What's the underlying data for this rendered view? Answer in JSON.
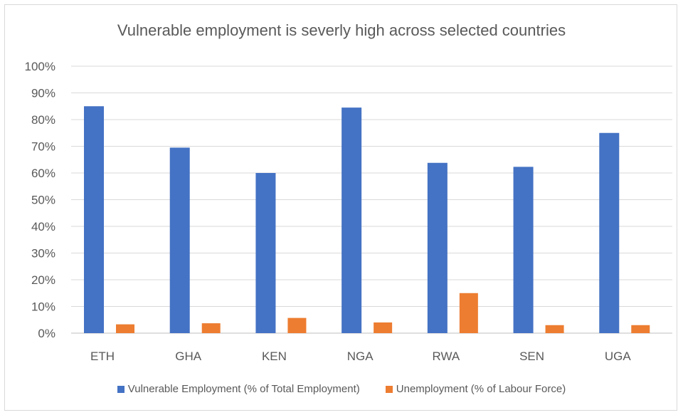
{
  "chart_data": {
    "type": "bar",
    "title": "Vulnerable employment is severly high across selected countries",
    "categories": [
      "ETH",
      "GHA",
      "KEN",
      "NGA",
      "RWA",
      "SEN",
      "UGA"
    ],
    "series": [
      {
        "name": "Vulnerable Employment (% of Total Employment)",
        "color": "#4472c4",
        "values": [
          85,
          69.5,
          60,
          84.5,
          63.8,
          62.3,
          75
        ]
      },
      {
        "name": "Unemployment (% of Labour Force)",
        "color": "#ed7d31",
        "values": [
          3.3,
          3.7,
          5.7,
          4.0,
          15,
          3.0,
          3.0
        ]
      }
    ],
    "ylim": [
      0,
      100
    ],
    "yticks": [
      "0%",
      "10%",
      "20%",
      "30%",
      "40%",
      "50%",
      "60%",
      "70%",
      "80%",
      "90%",
      "100%"
    ],
    "grid": true,
    "legend": "bottom"
  }
}
